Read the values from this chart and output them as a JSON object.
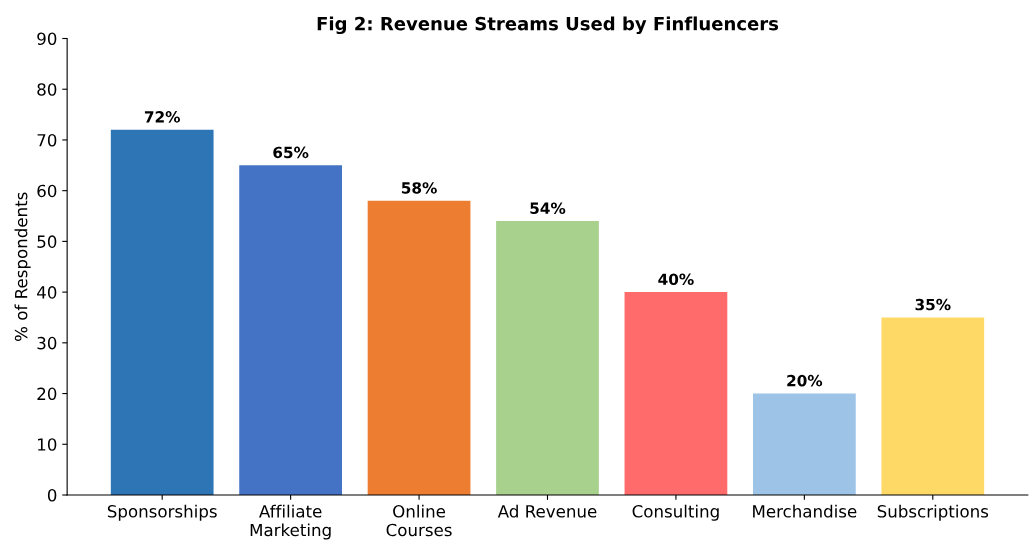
{
  "chart_data": {
    "type": "bar",
    "title": "Fig 2: Revenue Streams Used by Finfluencers",
    "ylabel": "% of Respondents",
    "categories": [
      "Sponsorships",
      "Affiliate\nMarketing",
      "Online\nCourses",
      "Ad Revenue",
      "Consulting",
      "Merchandise",
      "Subscriptions"
    ],
    "values": [
      72,
      65,
      58,
      54,
      40,
      20,
      35
    ],
    "colors": [
      "#2e75b6",
      "#4472c4",
      "#ed7d31",
      "#a9d18e",
      "#ff6b6b",
      "#9dc3e6",
      "#ffd966"
    ],
    "value_labels": [
      "72%",
      "65%",
      "58%",
      "54%",
      "40%",
      "20%",
      "35%"
    ],
    "ylim": [
      0,
      90
    ],
    "yticks": [
      0,
      10,
      20,
      30,
      40,
      50,
      60,
      70,
      80,
      90
    ],
    "grid": false,
    "legend": false
  }
}
